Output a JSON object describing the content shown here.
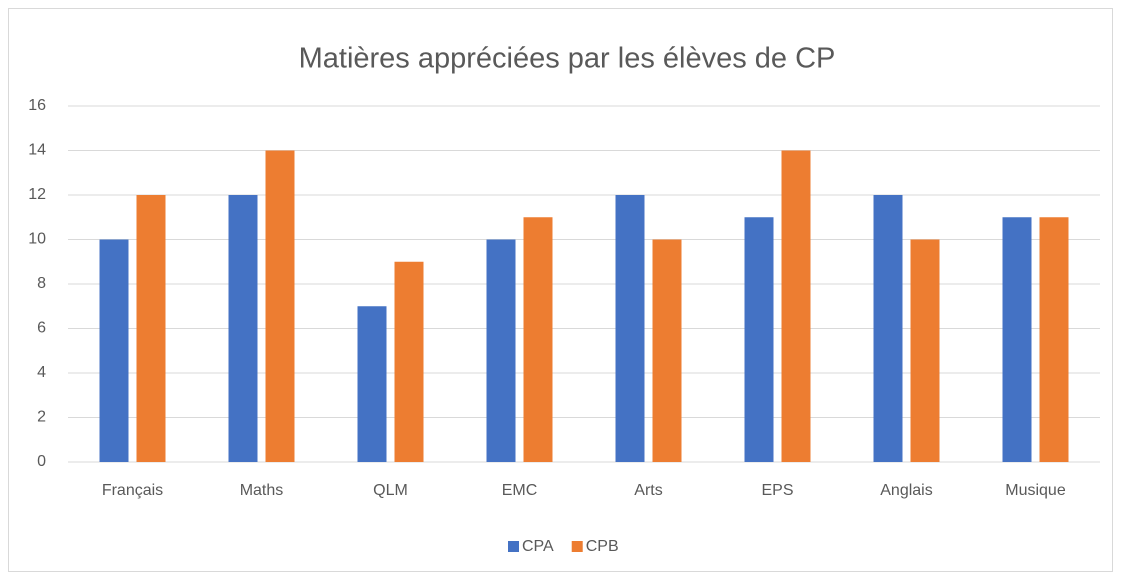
{
  "chart_data": {
    "type": "bar",
    "title": "Matières appréciées par les élèves de CP",
    "categories": [
      "Français",
      "Maths",
      "QLM",
      "EMC",
      "Arts",
      "EPS",
      "Anglais",
      "Musique"
    ],
    "series": [
      {
        "name": "CPA",
        "color": "#4472c4",
        "values": [
          10,
          12,
          7,
          10,
          12,
          11,
          12,
          11
        ]
      },
      {
        "name": "CPB",
        "color": "#ed7d31",
        "values": [
          12,
          14,
          9,
          11,
          10,
          14,
          10,
          11
        ]
      }
    ],
    "ylim": [
      0,
      16
    ],
    "yticks": [
      0,
      2,
      4,
      6,
      8,
      10,
      12,
      14,
      16
    ],
    "grid": true,
    "legend": "bottom"
  }
}
